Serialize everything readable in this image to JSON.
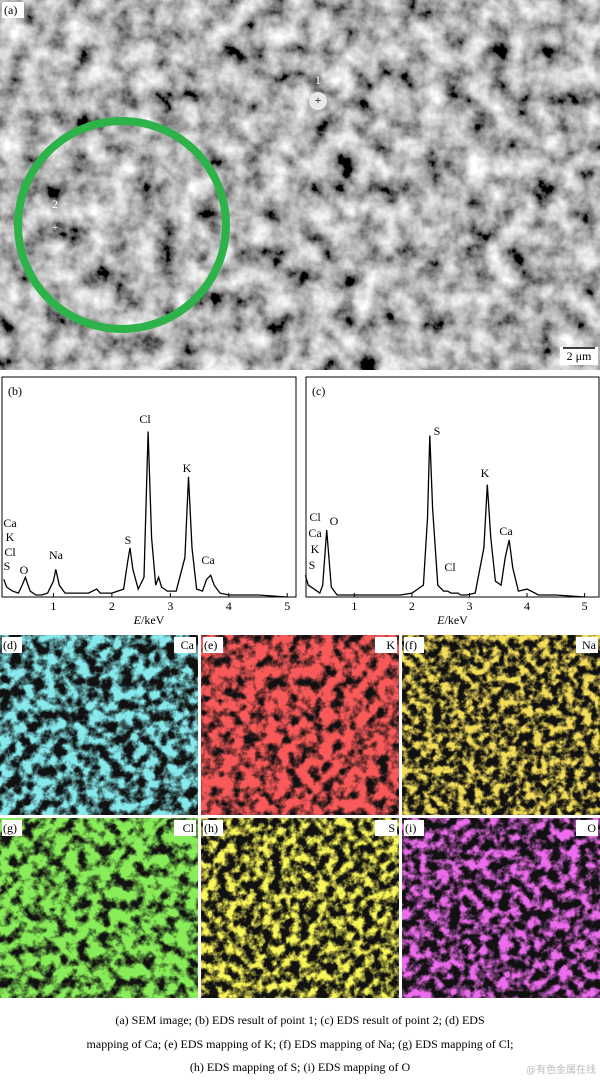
{
  "panels": {
    "a": {
      "label": "(a)",
      "points": [
        "1",
        "2"
      ],
      "scale_bar": "2 μm"
    },
    "maps": [
      {
        "label": "(d)",
        "element": "Ca"
      },
      {
        "label": "(e)",
        "element": "K"
      },
      {
        "label": "(f)",
        "element": "Na"
      },
      {
        "label": "(g)",
        "element": "Cl"
      },
      {
        "label": "(h)",
        "element": "S"
      },
      {
        "label": "(i)",
        "element": "O"
      }
    ]
  },
  "spectra": [
    {
      "type": "line",
      "label": "(b)",
      "xlabel_var": "E",
      "xlabel_unit": "/keV",
      "xlim": [
        0.12,
        5.15
      ],
      "ylim": [
        0,
        100
      ],
      "xticks": [
        1,
        2,
        3,
        4,
        5
      ],
      "x": [
        0.15,
        0.2,
        0.3,
        0.4,
        0.45,
        0.52,
        0.6,
        0.7,
        0.8,
        0.9,
        1.0,
        1.04,
        1.1,
        1.2,
        1.4,
        1.6,
        1.74,
        1.8,
        2.0,
        2.2,
        2.27,
        2.31,
        2.36,
        2.45,
        2.55,
        2.62,
        2.68,
        2.75,
        2.8,
        2.85,
        2.95,
        3.1,
        3.25,
        3.31,
        3.37,
        3.45,
        3.55,
        3.62,
        3.69,
        3.75,
        3.85,
        4.0,
        4.2,
        4.5,
        5.0
      ],
      "values": [
        9,
        5,
        3,
        2,
        5,
        10,
        3,
        1,
        1,
        2,
        8,
        14,
        6,
        2,
        2,
        2,
        4,
        2,
        2,
        4,
        18,
        25,
        14,
        4,
        10,
        84,
        30,
        6,
        10,
        5,
        3,
        3,
        20,
        61,
        25,
        4,
        3,
        9,
        11,
        6,
        2,
        1,
        1,
        1,
        0
      ],
      "peaks": [
        "Ca",
        "K",
        "Cl",
        "S",
        "O",
        "Na",
        "S",
        "Cl",
        "K",
        "Ca"
      ]
    },
    {
      "type": "line",
      "label": "(c)",
      "xlabel_var": "E",
      "xlabel_unit": "/keV",
      "xlim": [
        0.16,
        5.25
      ],
      "ylim": [
        0,
        100
      ],
      "xticks": [
        1,
        2,
        3,
        4,
        5
      ],
      "x": [
        0.15,
        0.2,
        0.3,
        0.4,
        0.45,
        0.52,
        0.6,
        0.7,
        0.8,
        0.9,
        1.0,
        1.04,
        1.1,
        1.2,
        1.4,
        1.6,
        1.74,
        1.8,
        2.0,
        2.2,
        2.27,
        2.31,
        2.36,
        2.45,
        2.55,
        2.62,
        2.68,
        2.75,
        2.8,
        2.85,
        2.95,
        3.1,
        3.25,
        3.31,
        3.37,
        3.45,
        3.55,
        3.62,
        3.69,
        3.75,
        3.85,
        4.0,
        4.2,
        4.5,
        5.0
      ],
      "values": [
        11,
        6,
        4,
        2,
        6,
        34,
        5,
        1,
        1,
        1,
        1,
        1,
        1,
        1,
        1,
        1,
        1,
        1,
        2,
        6,
        40,
        82,
        45,
        6,
        3,
        3,
        2,
        2,
        2,
        1,
        1,
        2,
        25,
        57,
        30,
        8,
        6,
        20,
        29,
        15,
        3,
        4,
        1,
        1,
        0
      ],
      "peaks": [
        "Cl",
        "Ca",
        "K",
        "S",
        "O",
        "S",
        "Cl",
        "K",
        "Ca"
      ]
    }
  ],
  "caption": [
    "(a) SEM image; (b) EDS result of point 1; (c) EDS result of point 2; (d) EDS",
    "mapping of Ca; (e) EDS mapping of K; (f) EDS mapping of Na; (g) EDS mapping of Cl;",
    "(h) EDS mapping of S; (i) EDS mapping of O"
  ],
  "watermark": "@有色金属在线"
}
